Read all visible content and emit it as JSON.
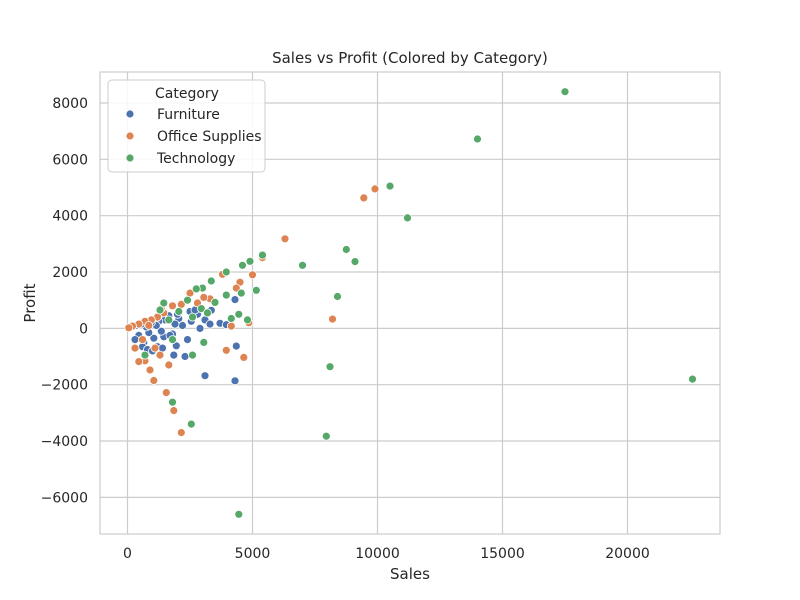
{
  "chart_data": {
    "type": "scatter",
    "title": "Sales vs Profit (Colored by Category)",
    "xlabel": "Sales",
    "ylabel": "Profit",
    "xlim": [
      -1100,
      23700
    ],
    "ylim": [
      -7300,
      9100
    ],
    "xticks": [
      0,
      5000,
      10000,
      15000,
      20000
    ],
    "xtick_labels": [
      "0",
      "5000",
      "10000",
      "15000",
      "20000"
    ],
    "yticks": [
      -6000,
      -4000,
      -2000,
      0,
      2000,
      4000,
      6000,
      8000
    ],
    "ytick_labels": [
      "−6000",
      "−4000",
      "−2000",
      "0",
      "2000",
      "4000",
      "6000",
      "8000"
    ],
    "grid": true,
    "legend": {
      "title": "Category",
      "placement": "top-left"
    },
    "series": [
      {
        "name": "Furniture",
        "color": "#4c72b0",
        "points": [
          [
            4300,
            1020
          ],
          [
            4300,
            -1860
          ],
          [
            4350,
            -630
          ],
          [
            3100,
            -1680
          ],
          [
            1950,
            -620
          ],
          [
            2300,
            -1000
          ],
          [
            1850,
            -950
          ],
          [
            3700,
            180
          ],
          [
            3350,
            640
          ],
          [
            3100,
            300
          ],
          [
            2800,
            500
          ],
          [
            2500,
            600
          ],
          [
            2550,
            250
          ],
          [
            2400,
            -400
          ],
          [
            2200,
            100
          ],
          [
            2050,
            350
          ],
          [
            1900,
            150
          ],
          [
            1800,
            -200
          ],
          [
            1650,
            450
          ],
          [
            1500,
            300
          ],
          [
            1450,
            -300
          ],
          [
            1350,
            -100
          ],
          [
            1250,
            250
          ],
          [
            1150,
            100
          ],
          [
            1050,
            -350
          ],
          [
            950,
            200
          ],
          [
            850,
            -150
          ],
          [
            750,
            50
          ],
          [
            650,
            -500
          ],
          [
            550,
            150
          ],
          [
            450,
            -250
          ],
          [
            350,
            100
          ],
          [
            300,
            -400
          ],
          [
            600,
            -650
          ],
          [
            800,
            -750
          ],
          [
            1000,
            -800
          ],
          [
            1200,
            -650
          ],
          [
            1400,
            -700
          ],
          [
            1700,
            -250
          ],
          [
            2000,
            500
          ],
          [
            2700,
            650
          ],
          [
            2900,
            0
          ],
          [
            3300,
            150
          ],
          [
            3950,
            130
          ]
        ]
      },
      {
        "name": "Office Supplies",
        "color": "#dd8452",
        "points": [
          [
            9900,
            4950
          ],
          [
            9450,
            4630
          ],
          [
            6300,
            3180
          ],
          [
            5400,
            2510
          ],
          [
            5000,
            1900
          ],
          [
            4500,
            1640
          ],
          [
            4350,
            1430
          ],
          [
            3800,
            1920
          ],
          [
            3300,
            1050
          ],
          [
            3050,
            1100
          ],
          [
            2500,
            1250
          ],
          [
            2150,
            850
          ],
          [
            1800,
            800
          ],
          [
            1450,
            550
          ],
          [
            1200,
            400
          ],
          [
            950,
            300
          ],
          [
            700,
            250
          ],
          [
            450,
            150
          ],
          [
            200,
            80
          ],
          [
            50,
            20
          ],
          [
            8200,
            330
          ],
          [
            4850,
            200
          ],
          [
            4150,
            80
          ],
          [
            3950,
            -780
          ],
          [
            4650,
            -1030
          ],
          [
            2150,
            -3700
          ],
          [
            1850,
            -2920
          ],
          [
            1550,
            -2280
          ],
          [
            1050,
            -1850
          ],
          [
            900,
            -1480
          ],
          [
            700,
            -1150
          ],
          [
            450,
            -1180
          ],
          [
            300,
            -700
          ],
          [
            1300,
            -950
          ],
          [
            1650,
            -1300
          ],
          [
            1100,
            -700
          ],
          [
            600,
            -400
          ],
          [
            850,
            100
          ],
          [
            1350,
            700
          ],
          [
            2800,
            900
          ]
        ]
      },
      {
        "name": "Technology",
        "color": "#55a868",
        "points": [
          [
            17500,
            8400
          ],
          [
            14000,
            6720
          ],
          [
            10500,
            5050
          ],
          [
            11200,
            3920
          ],
          [
            8750,
            2800
          ],
          [
            9100,
            2370
          ],
          [
            7000,
            2240
          ],
          [
            5400,
            2600
          ],
          [
            4900,
            2380
          ],
          [
            4600,
            2240
          ],
          [
            3950,
            2000
          ],
          [
            3350,
            1680
          ],
          [
            3000,
            1430
          ],
          [
            2750,
            1400
          ],
          [
            5150,
            1350
          ],
          [
            4550,
            1250
          ],
          [
            3950,
            1180
          ],
          [
            3500,
            920
          ],
          [
            2950,
            700
          ],
          [
            2400,
            1000
          ],
          [
            2050,
            600
          ],
          [
            1650,
            300
          ],
          [
            1300,
            650
          ],
          [
            4450,
            500
          ],
          [
            4800,
            300
          ],
          [
            4150,
            350
          ],
          [
            3200,
            550
          ],
          [
            2600,
            400
          ],
          [
            8400,
            1130
          ],
          [
            22600,
            -1800
          ],
          [
            8100,
            -1360
          ],
          [
            7950,
            -3830
          ],
          [
            4450,
            -6600
          ],
          [
            2550,
            -3400
          ],
          [
            1800,
            -2620
          ],
          [
            3050,
            -500
          ],
          [
            2600,
            -950
          ],
          [
            1800,
            -400
          ],
          [
            700,
            -950
          ],
          [
            1450,
            900
          ]
        ]
      }
    ]
  }
}
